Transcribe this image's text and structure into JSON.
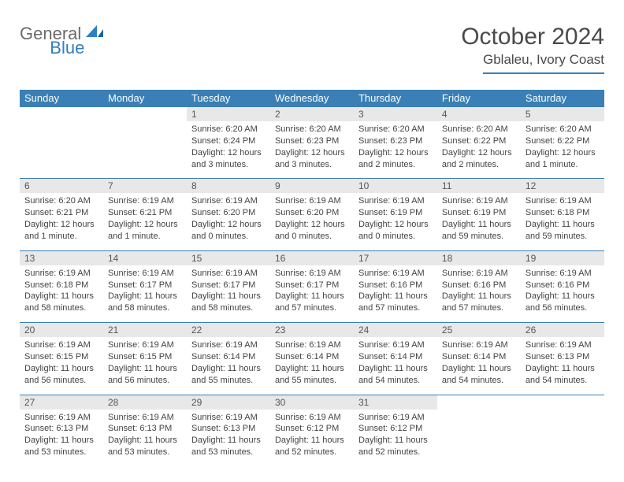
{
  "logo": {
    "general": "General",
    "blue": "Blue"
  },
  "title": "October 2024",
  "location": "Gblaleu, Ivory Coast",
  "colors": {
    "header_bg": "#3a7fb5",
    "header_fg": "#ffffff",
    "daynum_bg": "#e8e8e8",
    "rule": "#3a7fb5",
    "logo_gray": "#6b6b6b",
    "logo_blue": "#2f7fbf"
  },
  "day_headers": [
    "Sunday",
    "Monday",
    "Tuesday",
    "Wednesday",
    "Thursday",
    "Friday",
    "Saturday"
  ],
  "weeks": [
    {
      "nums": [
        "",
        "",
        "1",
        "2",
        "3",
        "4",
        "5"
      ],
      "cells": [
        null,
        null,
        {
          "sunrise": "6:20 AM",
          "sunset": "6:24 PM",
          "daylight": "12 hours and 3 minutes."
        },
        {
          "sunrise": "6:20 AM",
          "sunset": "6:23 PM",
          "daylight": "12 hours and 3 minutes."
        },
        {
          "sunrise": "6:20 AM",
          "sunset": "6:23 PM",
          "daylight": "12 hours and 2 minutes."
        },
        {
          "sunrise": "6:20 AM",
          "sunset": "6:22 PM",
          "daylight": "12 hours and 2 minutes."
        },
        {
          "sunrise": "6:20 AM",
          "sunset": "6:22 PM",
          "daylight": "12 hours and 1 minute."
        }
      ]
    },
    {
      "nums": [
        "6",
        "7",
        "8",
        "9",
        "10",
        "11",
        "12"
      ],
      "cells": [
        {
          "sunrise": "6:20 AM",
          "sunset": "6:21 PM",
          "daylight": "12 hours and 1 minute."
        },
        {
          "sunrise": "6:19 AM",
          "sunset": "6:21 PM",
          "daylight": "12 hours and 1 minute."
        },
        {
          "sunrise": "6:19 AM",
          "sunset": "6:20 PM",
          "daylight": "12 hours and 0 minutes."
        },
        {
          "sunrise": "6:19 AM",
          "sunset": "6:20 PM",
          "daylight": "12 hours and 0 minutes."
        },
        {
          "sunrise": "6:19 AM",
          "sunset": "6:19 PM",
          "daylight": "12 hours and 0 minutes."
        },
        {
          "sunrise": "6:19 AM",
          "sunset": "6:19 PM",
          "daylight": "11 hours and 59 minutes."
        },
        {
          "sunrise": "6:19 AM",
          "sunset": "6:18 PM",
          "daylight": "11 hours and 59 minutes."
        }
      ]
    },
    {
      "nums": [
        "13",
        "14",
        "15",
        "16",
        "17",
        "18",
        "19"
      ],
      "cells": [
        {
          "sunrise": "6:19 AM",
          "sunset": "6:18 PM",
          "daylight": "11 hours and 58 minutes."
        },
        {
          "sunrise": "6:19 AM",
          "sunset": "6:17 PM",
          "daylight": "11 hours and 58 minutes."
        },
        {
          "sunrise": "6:19 AM",
          "sunset": "6:17 PM",
          "daylight": "11 hours and 58 minutes."
        },
        {
          "sunrise": "6:19 AM",
          "sunset": "6:17 PM",
          "daylight": "11 hours and 57 minutes."
        },
        {
          "sunrise": "6:19 AM",
          "sunset": "6:16 PM",
          "daylight": "11 hours and 57 minutes."
        },
        {
          "sunrise": "6:19 AM",
          "sunset": "6:16 PM",
          "daylight": "11 hours and 57 minutes."
        },
        {
          "sunrise": "6:19 AM",
          "sunset": "6:16 PM",
          "daylight": "11 hours and 56 minutes."
        }
      ]
    },
    {
      "nums": [
        "20",
        "21",
        "22",
        "23",
        "24",
        "25",
        "26"
      ],
      "cells": [
        {
          "sunrise": "6:19 AM",
          "sunset": "6:15 PM",
          "daylight": "11 hours and 56 minutes."
        },
        {
          "sunrise": "6:19 AM",
          "sunset": "6:15 PM",
          "daylight": "11 hours and 56 minutes."
        },
        {
          "sunrise": "6:19 AM",
          "sunset": "6:14 PM",
          "daylight": "11 hours and 55 minutes."
        },
        {
          "sunrise": "6:19 AM",
          "sunset": "6:14 PM",
          "daylight": "11 hours and 55 minutes."
        },
        {
          "sunrise": "6:19 AM",
          "sunset": "6:14 PM",
          "daylight": "11 hours and 54 minutes."
        },
        {
          "sunrise": "6:19 AM",
          "sunset": "6:14 PM",
          "daylight": "11 hours and 54 minutes."
        },
        {
          "sunrise": "6:19 AM",
          "sunset": "6:13 PM",
          "daylight": "11 hours and 54 minutes."
        }
      ]
    },
    {
      "nums": [
        "27",
        "28",
        "29",
        "30",
        "31",
        "",
        ""
      ],
      "cells": [
        {
          "sunrise": "6:19 AM",
          "sunset": "6:13 PM",
          "daylight": "11 hours and 53 minutes."
        },
        {
          "sunrise": "6:19 AM",
          "sunset": "6:13 PM",
          "daylight": "11 hours and 53 minutes."
        },
        {
          "sunrise": "6:19 AM",
          "sunset": "6:13 PM",
          "daylight": "11 hours and 53 minutes."
        },
        {
          "sunrise": "6:19 AM",
          "sunset": "6:12 PM",
          "daylight": "11 hours and 52 minutes."
        },
        {
          "sunrise": "6:19 AM",
          "sunset": "6:12 PM",
          "daylight": "11 hours and 52 minutes."
        },
        null,
        null
      ]
    }
  ],
  "labels": {
    "sunrise": "Sunrise:",
    "sunset": "Sunset:",
    "daylight": "Daylight:"
  }
}
